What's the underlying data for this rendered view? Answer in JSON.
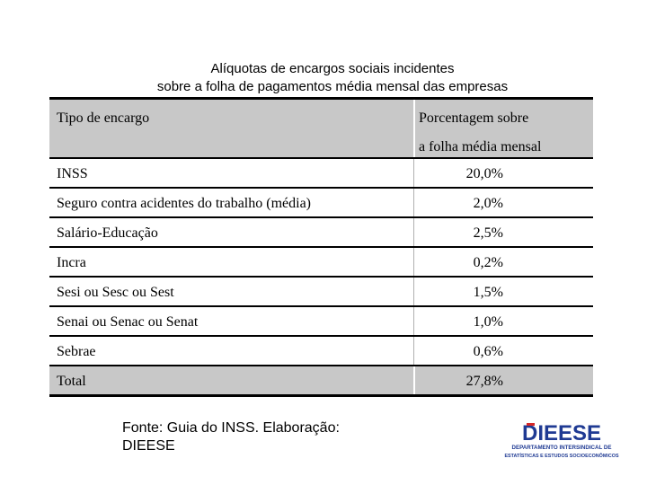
{
  "title": {
    "line1": "Alíquotas de encargos sociais incidentes",
    "line2": "sobre a folha de pagamentos média mensal das empresas"
  },
  "table": {
    "header_col1": "Tipo de encargo",
    "header_col2_line1": "Porcentagem sobre",
    "header_col2_line2": "a folha média mensal",
    "rows": [
      {
        "label": "INSS",
        "value": "20,0%"
      },
      {
        "label": "Seguro contra acidentes do trabalho (média)",
        "value": "2,0%"
      },
      {
        "label": "Salário-Educação",
        "value": "2,5%"
      },
      {
        "label": "Incra",
        "value": "0,2%"
      },
      {
        "label": "Sesi ou Sesc ou Sest",
        "value": "1,5%"
      },
      {
        "label": "Senai ou Senac ou Senat",
        "value": "1,0%"
      },
      {
        "label": "Sebrae",
        "value": "0,6%"
      }
    ],
    "total": {
      "label": "Total",
      "value": "27,8%"
    }
  },
  "source": {
    "line1": "Fonte: Guia do INSS. Elaboração:",
    "line2": "DIEESE"
  },
  "logo": {
    "name": "DIEESE",
    "line1": "DEPARTAMENTO INTERSINDICAL DE",
    "line2": "ESTATÍSTICAS E ESTUDOS SOCIOECONÔMICOS",
    "color": "#1f3a93",
    "accent": "#d62828"
  }
}
